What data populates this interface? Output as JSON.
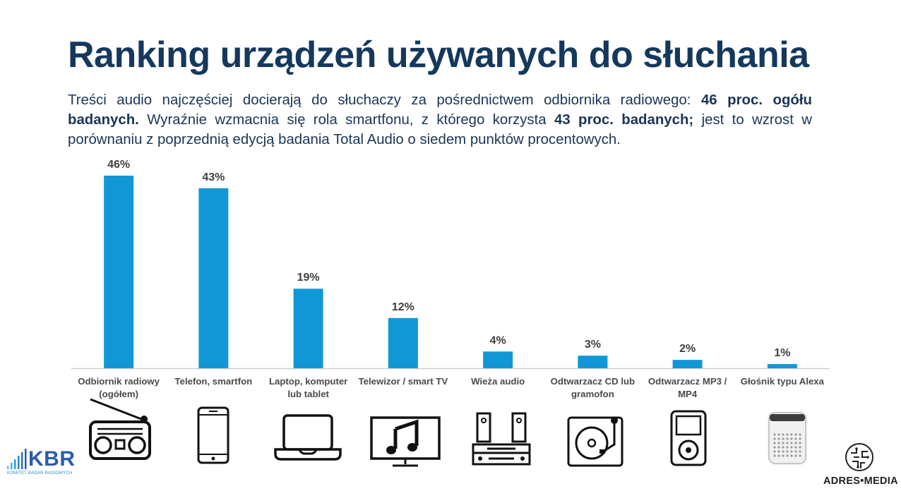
{
  "title": "Ranking urządzeń używanych do słuchania",
  "subtitle": {
    "p1": "Treści audio najczęściej docierają do słuchaczy za pośrednictwem odbiornika radiowego: ",
    "b1": "46 proc. ogółu badanych.",
    "p2": " Wyraźnie wzmacnia się rola smartfonu, z którego korzysta ",
    "b2": "43 proc. badanych;",
    "p3": " jest to wzrost w porównaniu z poprzednią edycją badania Total Audio o siedem punktów procentowych."
  },
  "chart_data": {
    "type": "bar",
    "title": "Ranking urządzeń używanych do słuchania",
    "categories": [
      [
        "Odbiornik radiowy",
        "(ogółem)"
      ],
      [
        "Telefon, smartfon"
      ],
      [
        "Laptop, komputer",
        "lub tablet"
      ],
      [
        "Telewizor / smart TV"
      ],
      [
        "Wieża audio"
      ],
      [
        "Odtwarzacz CD lub",
        "gramofon"
      ],
      [
        "Odtwarzacz MP3 /",
        "MP4"
      ],
      [
        "Głośnik typu Alexa"
      ]
    ],
    "values": [
      46,
      43,
      19,
      12,
      4,
      3,
      2,
      1
    ],
    "value_labels": [
      "46%",
      "43%",
      "19%",
      "12%",
      "4%",
      "3%",
      "2%",
      "1%"
    ],
    "unit": "%",
    "ylim": [
      0,
      46
    ],
    "bar_color": "#1197d6",
    "grid": false
  },
  "icons": [
    "radio-icon",
    "smartphone-icon",
    "laptop-icon",
    "tv-icon",
    "stereo-icon",
    "turntable-icon",
    "mp3-player-icon",
    "smart-speaker-icon"
  ],
  "logos": {
    "kbr": "KBR",
    "kbr_sub": "KOMITET BADAŃ RADIOWYCH",
    "adres": "ADRES•MEDIA"
  }
}
